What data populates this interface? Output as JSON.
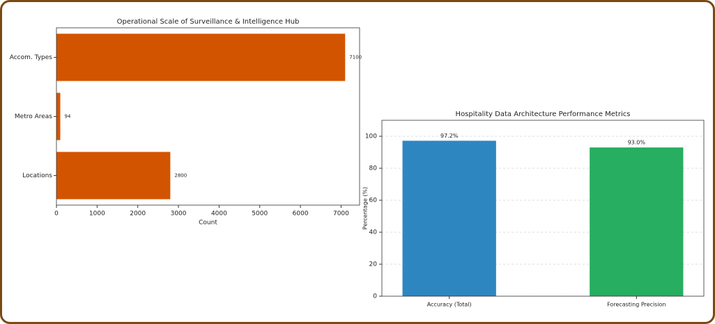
{
  "chart_data": [
    {
      "type": "barh",
      "title": "Operational Scale of Surveillance & Intelligence Hub",
      "categories": [
        "Locations",
        "Metro Areas",
        "Accom. Types"
      ],
      "values": [
        2800,
        94,
        7100
      ],
      "color": "#d35400",
      "xlabel": "Count",
      "xlim": [
        0,
        7455
      ],
      "xticks": [
        0,
        1000,
        2000,
        3000,
        4000,
        5000,
        6000,
        7000
      ],
      "grid": false
    },
    {
      "type": "bar",
      "title": "Hospitality Data Architecture Performance Metrics",
      "categories": [
        "Accuracy (Total)",
        "Forecasting Precision"
      ],
      "values": [
        97.2,
        93.0
      ],
      "value_labels": [
        "97.2%",
        "93.0%"
      ],
      "colors": [
        "#2e86c1",
        "#27ae60"
      ],
      "ylabel": "Percentage (%)",
      "ylim": [
        0,
        110
      ],
      "yticks": [
        0,
        20,
        40,
        60,
        80,
        100
      ],
      "grid": true
    }
  ]
}
